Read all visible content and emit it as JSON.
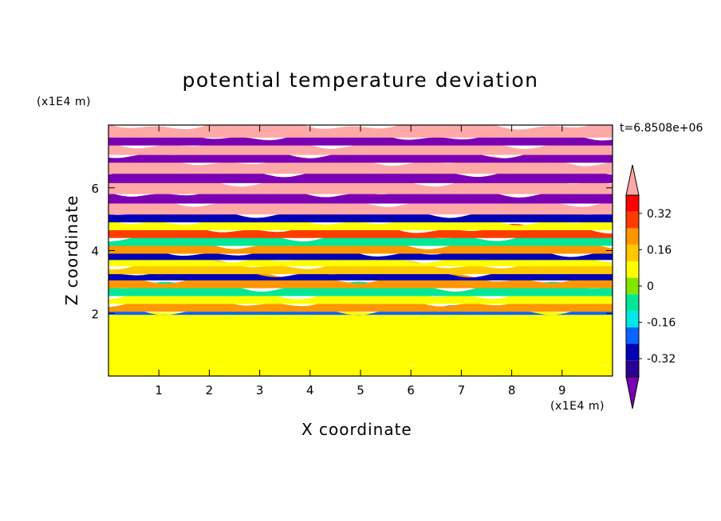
{
  "chart_data": {
    "type": "heatmap",
    "title": "potential temperature deviation",
    "xlabel": "X coordinate",
    "ylabel": "Z coordinate",
    "x_unit": "(x1E4 m)",
    "y_unit": "(x1E4 m)",
    "time_label": "t=6.8508e+06",
    "xlim": [
      0,
      10
    ],
    "ylim": [
      0,
      8
    ],
    "x_ticks": [
      "1",
      "2",
      "3",
      "4",
      "5",
      "6",
      "7",
      "8",
      "9"
    ],
    "y_ticks": [
      "2",
      "4",
      "6"
    ],
    "colorbar": {
      "levels": [
        -0.48,
        -0.4,
        -0.32,
        -0.24,
        -0.16,
        -0.08,
        0,
        0.08,
        0.16,
        0.24,
        0.32,
        0.4,
        0.48
      ],
      "tick_labels": [
        "0.32",
        "0.16",
        "0",
        "-0.16",
        "-0.32"
      ],
      "tick_values": [
        0.32,
        0.16,
        0,
        -0.16,
        -0.32
      ],
      "colors_low_to_high": [
        "#7b00b4",
        "#2a0096",
        "#0000b4",
        "#0a64ff",
        "#00e8e8",
        "#00e896",
        "#82e600",
        "#ffff00",
        "#ffc800",
        "#ff9600",
        "#ff3c00",
        "#ff0000",
        "#ffa8a8"
      ],
      "extend": "both"
    },
    "bands": [
      {
        "z": [
          0.0,
          0.4
        ],
        "value": 0.0
      },
      {
        "z": [
          0.4,
          1.6
        ],
        "value": 0.04
      },
      {
        "z": [
          1.6,
          2.0
        ],
        "value": 0.0
      },
      {
        "z": [
          2.0,
          2.1
        ],
        "value": -0.32
      },
      {
        "z": [
          2.1,
          2.35
        ],
        "value": 0.16
      },
      {
        "z": [
          2.35,
          2.6
        ],
        "value": 0.04
      },
      {
        "z": [
          2.6,
          2.85
        ],
        "value": -0.1
      },
      {
        "z": [
          2.85,
          3.1
        ],
        "value": 0.18
      },
      {
        "z": [
          3.1,
          3.3
        ],
        "value": -0.35
      },
      {
        "z": [
          3.3,
          3.55
        ],
        "value": 0.1
      },
      {
        "z": [
          3.55,
          3.75
        ],
        "value": 0.02
      },
      {
        "z": [
          3.75,
          3.95
        ],
        "value": -0.38
      },
      {
        "z": [
          3.95,
          4.2
        ],
        "value": 0.2
      },
      {
        "z": [
          4.2,
          4.45
        ],
        "value": -0.12
      },
      {
        "z": [
          4.45,
          4.7
        ],
        "value": 0.3
      },
      {
        "z": [
          4.7,
          4.95
        ],
        "value": 0.05
      },
      {
        "z": [
          4.95,
          5.2
        ],
        "value": -0.34
      },
      {
        "z": [
          5.2,
          5.55
        ],
        "value": 0.5
      },
      {
        "z": [
          5.55,
          5.85
        ],
        "value": -0.5
      },
      {
        "z": [
          5.85,
          6.2
        ],
        "value": 0.5
      },
      {
        "z": [
          6.2,
          6.5
        ],
        "value": -0.5
      },
      {
        "z": [
          6.5,
          6.85
        ],
        "value": 0.5
      },
      {
        "z": [
          6.85,
          7.1
        ],
        "value": -0.5
      },
      {
        "z": [
          7.1,
          7.4
        ],
        "value": 0.5
      },
      {
        "z": [
          7.4,
          7.65
        ],
        "value": -0.5
      },
      {
        "z": [
          7.65,
          8.0
        ],
        "value": 0.5
      }
    ]
  }
}
